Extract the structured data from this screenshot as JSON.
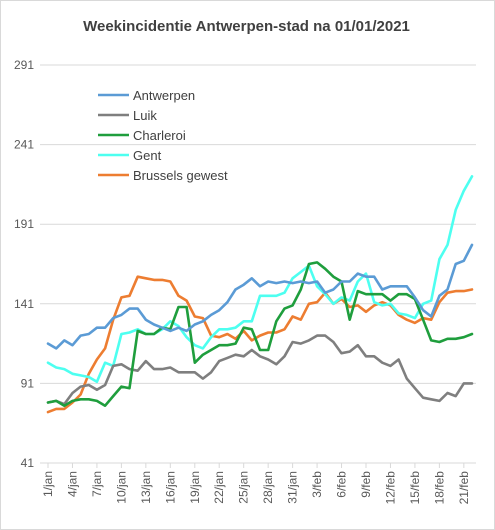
{
  "title": "Weekincidentie  Antwerpen-stad na 01/01/2021",
  "chart_data": {
    "type": "line",
    "title": "Weekincidentie  Antwerpen-stad na 01/01/2021",
    "xlabel": "",
    "ylabel": "",
    "ylim": [
      41,
      291
    ],
    "y_ticks": [
      41,
      91,
      141,
      191,
      241,
      291
    ],
    "x_tick_labels": [
      "1/jan",
      "4/jan",
      "7/jan",
      "10/jan",
      "13/jan",
      "16/jan",
      "19/jan",
      "22/jan",
      "25/jan",
      "28/jan",
      "31/jan",
      "3/feb",
      "6/feb",
      "9/feb",
      "12/feb",
      "15/feb",
      "18/feb",
      "21/feb"
    ],
    "x_tick_days": [
      1,
      4,
      7,
      10,
      13,
      16,
      19,
      22,
      25,
      28,
      31,
      34,
      37,
      40,
      43,
      46,
      49,
      52
    ],
    "x_range": [
      1,
      53
    ],
    "grid": "horizontal",
    "legend_position": "top-left",
    "series": [
      {
        "name": "Antwerpen",
        "color": "#5b9bd5",
        "x": [
          1,
          2,
          3,
          4,
          5,
          6,
          7,
          8,
          9,
          10,
          11,
          12,
          13,
          14,
          15,
          16,
          17,
          18,
          19,
          20,
          21,
          22,
          23,
          24,
          25,
          26,
          27,
          28,
          29,
          30,
          31,
          32,
          33,
          34,
          35,
          36,
          37,
          38,
          39,
          40,
          41,
          42,
          43,
          44,
          45,
          46,
          47,
          48,
          49,
          50,
          51,
          52,
          53
        ],
        "values": [
          116,
          113,
          118,
          115,
          121,
          122,
          126,
          126,
          132,
          134,
          138,
          138,
          131,
          128,
          126,
          124,
          126,
          124,
          128,
          130,
          134,
          137,
          142,
          150,
          153,
          157,
          152,
          155,
          154,
          155,
          154,
          155,
          154,
          155,
          148,
          150,
          155,
          155,
          160,
          158,
          158,
          150,
          152,
          152,
          152,
          145,
          137,
          133,
          146,
          150,
          166,
          168,
          178
        ]
      },
      {
        "name": "Luik",
        "color": "#7f7f7f",
        "x": [
          1,
          2,
          3,
          4,
          5,
          6,
          7,
          8,
          9,
          10,
          11,
          12,
          13,
          14,
          15,
          16,
          17,
          18,
          19,
          20,
          21,
          22,
          23,
          24,
          25,
          26,
          27,
          28,
          29,
          30,
          31,
          32,
          33,
          34,
          35,
          36,
          37,
          38,
          39,
          40,
          41,
          42,
          43,
          44,
          45,
          46,
          47,
          48,
          49,
          50,
          51,
          52,
          53
        ],
        "values": [
          79,
          80,
          78,
          85,
          89,
          90,
          87,
          90,
          102,
          103,
          100,
          99,
          105,
          100,
          100,
          101,
          98,
          98,
          98,
          94,
          98,
          105,
          107,
          109,
          108,
          112,
          108,
          106,
          103,
          108,
          117,
          116,
          118,
          121,
          121,
          117,
          110,
          111,
          115,
          108,
          108,
          104,
          102,
          106,
          94,
          88,
          82,
          81,
          80,
          85,
          83,
          91,
          91
        ]
      },
      {
        "name": "Charleroi",
        "color": "#1f9e3d",
        "x": [
          1,
          2,
          3,
          4,
          5,
          6,
          7,
          8,
          9,
          10,
          11,
          12,
          13,
          14,
          15,
          16,
          17,
          18,
          19,
          20,
          21,
          22,
          23,
          24,
          25,
          26,
          27,
          28,
          29,
          30,
          31,
          32,
          33,
          34,
          35,
          36,
          37,
          38,
          39,
          40,
          41,
          42,
          43,
          44,
          45,
          46,
          47,
          48,
          49,
          50,
          51,
          52,
          53
        ],
        "values": [
          79,
          80,
          77,
          80,
          81,
          81,
          80,
          77,
          83,
          89,
          88,
          124,
          122,
          122,
          126,
          125,
          139,
          139,
          104,
          109,
          112,
          115,
          115,
          116,
          126,
          125,
          112,
          112,
          130,
          138,
          140,
          150,
          166,
          167,
          163,
          158,
          155,
          131,
          149,
          147,
          147,
          147,
          143,
          147,
          147,
          144,
          131,
          118,
          117,
          119,
          119,
          120,
          122
        ]
      },
      {
        "name": "Gent",
        "color": "#4dfff0",
        "x": [
          1,
          2,
          3,
          4,
          5,
          6,
          7,
          8,
          9,
          10,
          11,
          12,
          13,
          14,
          15,
          16,
          17,
          18,
          19,
          20,
          21,
          22,
          23,
          24,
          25,
          26,
          27,
          28,
          29,
          30,
          31,
          32,
          33,
          34,
          35,
          36,
          37,
          38,
          39,
          40,
          41,
          42,
          43,
          44,
          45,
          46,
          47,
          48,
          49,
          50,
          51,
          52,
          53
        ],
        "values": [
          104,
          101,
          100,
          97,
          96,
          95,
          92,
          104,
          102,
          122,
          123,
          125,
          122,
          122,
          125,
          130,
          127,
          120,
          115,
          113,
          120,
          125,
          125,
          126,
          130,
          130,
          146,
          146,
          146,
          148,
          157,
          161,
          165,
          152,
          147,
          141,
          145,
          143,
          155,
          160,
          142,
          140,
          141,
          135,
          134,
          132,
          141,
          143,
          169,
          178,
          200,
          212,
          221
        ]
      },
      {
        "name": "Brussels gewest",
        "color": "#ed7d31",
        "x": [
          1,
          2,
          3,
          4,
          5,
          6,
          7,
          8,
          9,
          10,
          11,
          12,
          13,
          14,
          15,
          16,
          17,
          18,
          19,
          20,
          21,
          22,
          23,
          24,
          25,
          26,
          27,
          28,
          29,
          30,
          31,
          32,
          33,
          34,
          35,
          36,
          37,
          38,
          39,
          40,
          41,
          42,
          43,
          44,
          45,
          46,
          47,
          48,
          49,
          50,
          51,
          52,
          53
        ],
        "values": [
          73,
          75,
          75,
          79,
          84,
          97,
          106,
          113,
          131,
          145,
          146,
          158,
          157,
          156,
          156,
          155,
          146,
          143,
          133,
          132,
          121,
          120,
          122,
          119,
          124,
          118,
          121,
          123,
          123,
          125,
          133,
          131,
          141,
          142,
          148,
          141,
          144,
          139,
          140,
          136,
          140,
          142,
          140,
          134,
          131,
          129,
          132,
          131,
          142,
          148,
          149,
          149,
          150
        ]
      }
    ]
  }
}
